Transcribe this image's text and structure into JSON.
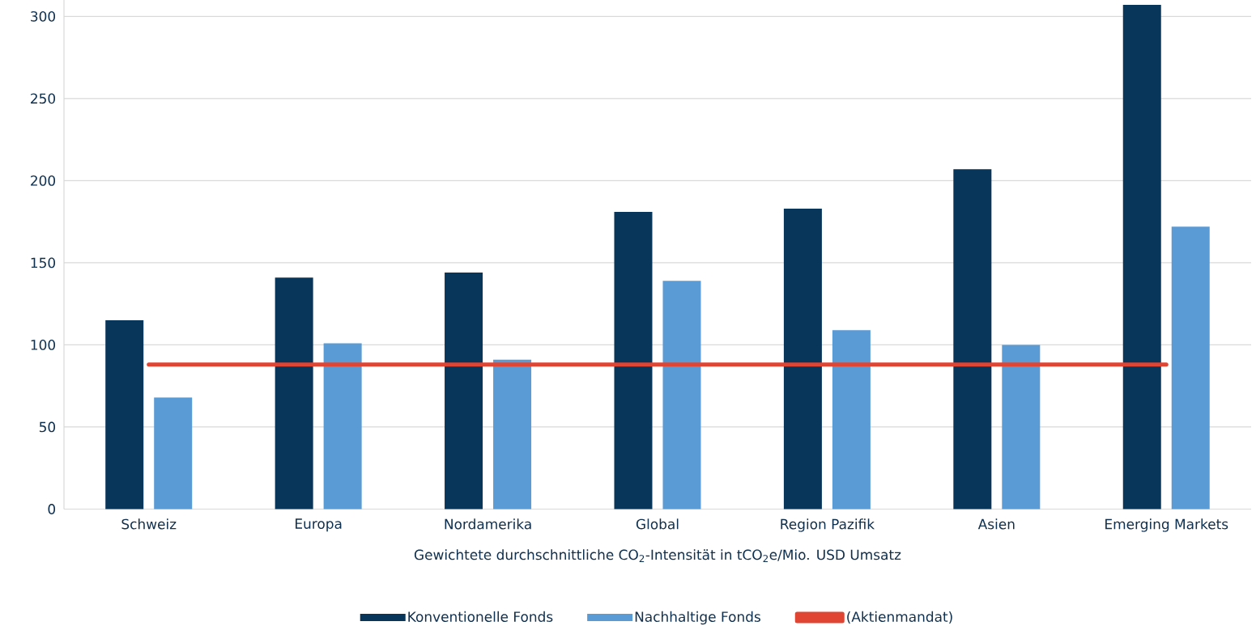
{
  "chart_data": {
    "type": "bar",
    "xlabel": "Gewichtete durchschnittliche CO$_{2}$-Intensität in tCO$_{2}$e/Mio. USD Umsatz",
    "categories": [
      "Schweiz",
      "Europa",
      "Nordamerika",
      "Global",
      "Region Pazifik",
      "Asien",
      "Emerging Markets"
    ],
    "series": [
      {
        "name": "Konventionelle Fonds",
        "color": "#08355a",
        "values": [
          115,
          141,
          144,
          181,
          183,
          207,
          307
        ]
      },
      {
        "name": "Nachhaltige Fonds",
        "color": "#5b9bd5",
        "values": [
          68,
          101,
          91,
          139,
          109,
          100,
          172
        ]
      },
      {
        "name": "(Aktienmandat)",
        "type": "line",
        "color": "#e04433",
        "values": [
          88,
          88,
          88,
          88,
          88,
          88,
          88
        ]
      }
    ],
    "ylim": [
      0,
      310
    ],
    "yticks": [
      0,
      50,
      100,
      150,
      200,
      250,
      300
    ],
    "grid": "y",
    "legend": "bottom"
  }
}
